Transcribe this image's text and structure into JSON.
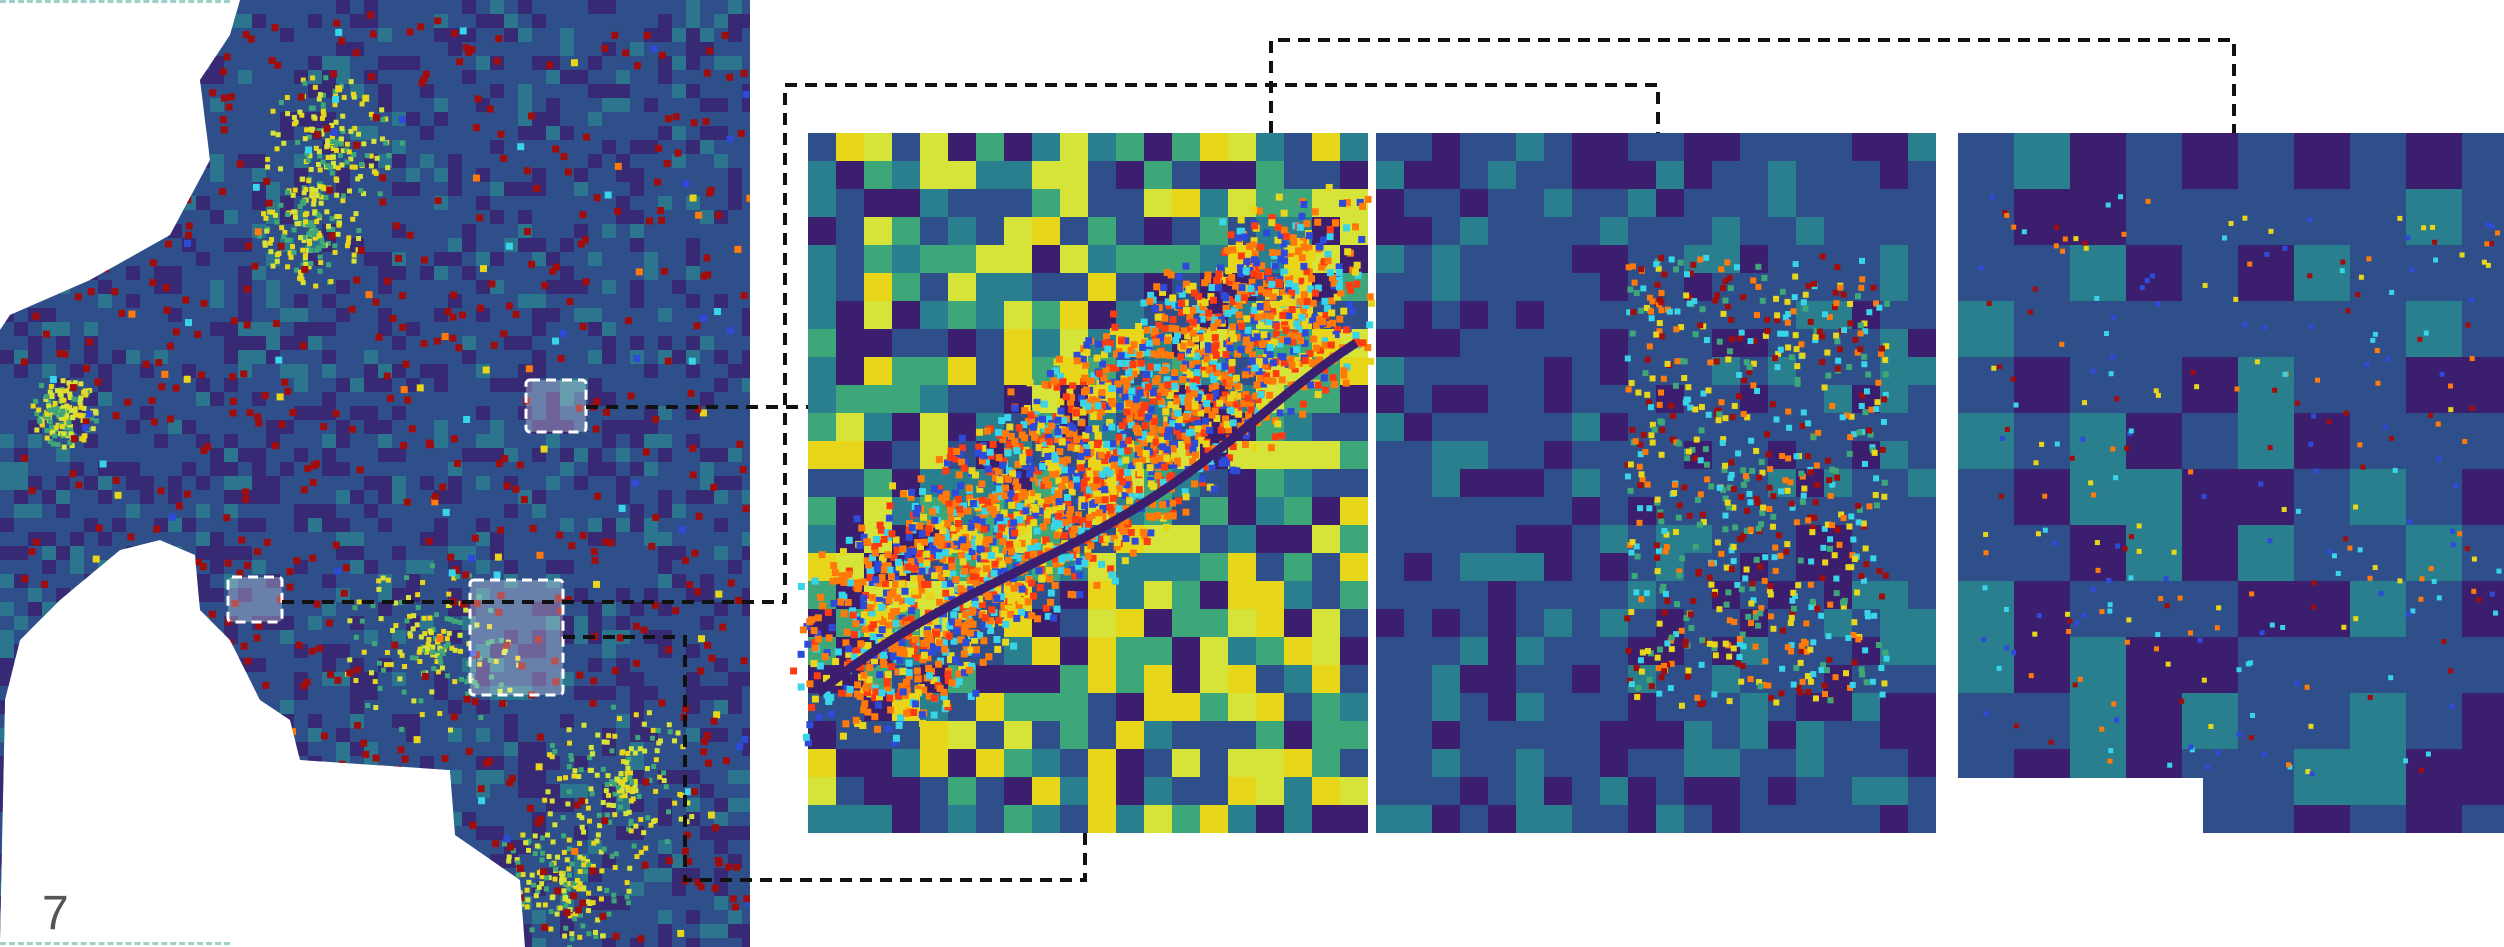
{
  "page": {
    "number": "7"
  },
  "palette": {
    "low": "#3b1f6e",
    "mid_low": "#2f4f8a",
    "mid": "#2a7f8e",
    "mid_high": "#3ea77a",
    "high": "#d6e43a",
    "hot": "#e8d61a",
    "point_red": "#a10d0d",
    "point_orange": "#ff7a0a",
    "point_cyan": "#38d4e8",
    "point_blue": "#2d4bd8",
    "connector": "#111111",
    "highlight_box": "#ffffff"
  },
  "panels": [
    {
      "name": "overview-map",
      "icon": "region-map-icon"
    },
    {
      "name": "zoom-panel-1",
      "icon": "raster-zoom-icon"
    },
    {
      "name": "zoom-panel-2",
      "icon": "point-zoom-icon"
    },
    {
      "name": "zoom-panel-3",
      "icon": "point-zoom-icon"
    }
  ]
}
